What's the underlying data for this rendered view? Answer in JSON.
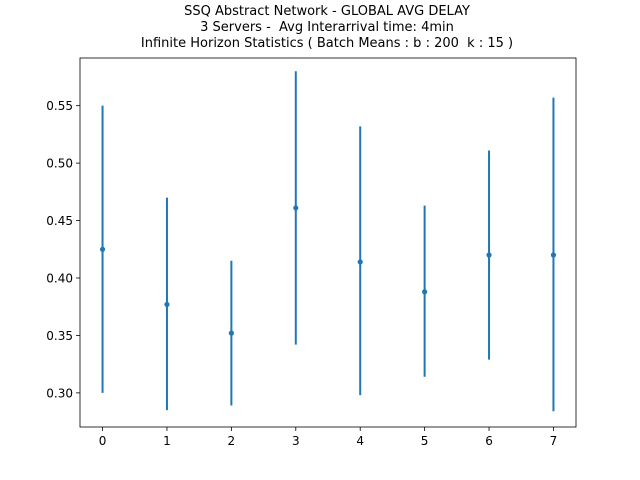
{
  "chart_data": {
    "type": "scatter",
    "title_lines": [
      "SSQ Abstract Network - GLOBAL AVG DELAY",
      "3 Servers -  Avg Interarrival time: 4min",
      "Infinite Horizon Statistics ( Batch Means : b : 200  k : 15 )"
    ],
    "xlabel": "",
    "ylabel": "",
    "xlim": [
      -0.35,
      7.35
    ],
    "ylim": [
      0.2703,
      0.5915
    ],
    "x_ticks": [
      0,
      1,
      2,
      3,
      4,
      5,
      6,
      7
    ],
    "x_tick_labels": [
      "0",
      "1",
      "2",
      "3",
      "4",
      "5",
      "6",
      "7"
    ],
    "y_ticks": [
      0.3,
      0.35,
      0.4,
      0.45,
      0.5,
      0.55
    ],
    "y_tick_labels": [
      "0.30",
      "0.35",
      "0.40",
      "0.45",
      "0.50",
      "0.55"
    ],
    "series": [
      {
        "color": "#1f77b4",
        "points": [
          {
            "x": 0,
            "y": 0.425,
            "low": 0.3,
            "high": 0.55
          },
          {
            "x": 1,
            "y": 0.377,
            "low": 0.285,
            "high": 0.47
          },
          {
            "x": 2,
            "y": 0.352,
            "low": 0.289,
            "high": 0.415
          },
          {
            "x": 3,
            "y": 0.461,
            "low": 0.342,
            "high": 0.58
          },
          {
            "x": 4,
            "y": 0.414,
            "low": 0.298,
            "high": 0.532
          },
          {
            "x": 5,
            "y": 0.388,
            "low": 0.314,
            "high": 0.463
          },
          {
            "x": 6,
            "y": 0.42,
            "low": 0.329,
            "high": 0.511
          },
          {
            "x": 7,
            "y": 0.42,
            "low": 0.284,
            "high": 0.557
          }
        ]
      }
    ],
    "grid": false,
    "legend": "none"
  }
}
